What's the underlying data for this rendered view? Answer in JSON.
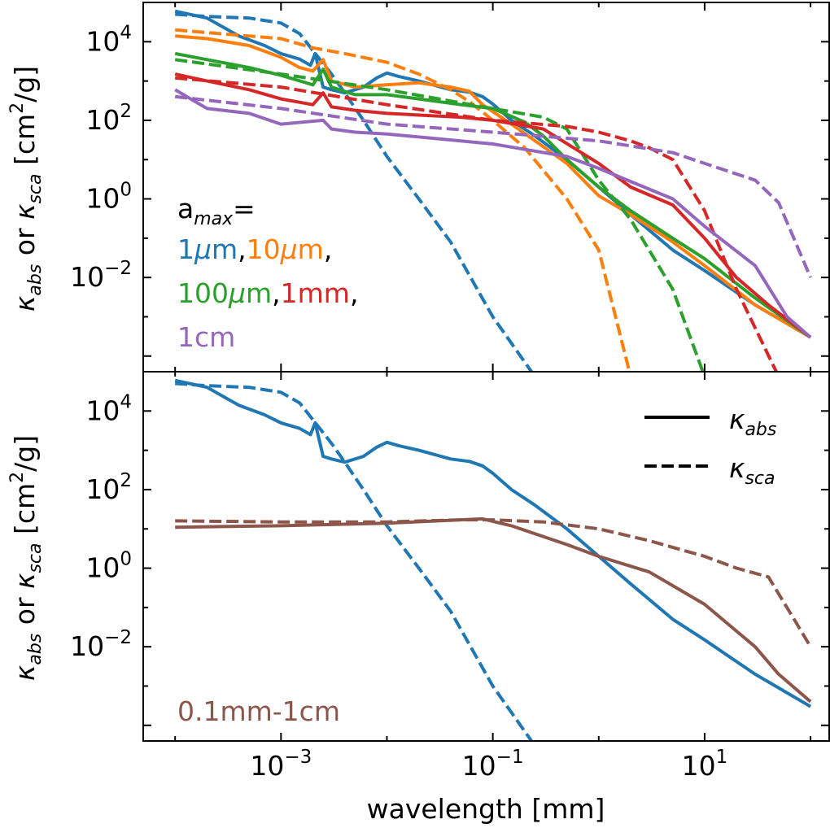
{
  "chart_data": [
    {
      "type": "line",
      "panel": "top",
      "xscale": "log",
      "yscale": "log",
      "xlim": [
        5e-05,
        150
      ],
      "ylim": [
        4e-05,
        100000
      ],
      "xticks": [
        0.001,
        0.1,
        10
      ],
      "xtick_labels": [
        {
          "base": "10",
          "exp": "−3"
        },
        {
          "base": "10",
          "exp": "−1"
        },
        {
          "base": "10",
          "exp": "1"
        }
      ],
      "yticks": [
        0.01,
        1,
        100,
        10000
      ],
      "ytick_labels": [
        {
          "base": "10",
          "exp": "−2"
        },
        {
          "base": "10",
          "exp": "0"
        },
        {
          "base": "10",
          "exp": "2"
        },
        {
          "base": "10",
          "exp": "4"
        }
      ],
      "ylabel": {
        "k1": "κ",
        "s1": "abs",
        "mid": " or ",
        "k2": "κ",
        "s2": "sca",
        "unit1": " [cm",
        "unit_exp": "2",
        "unit2": "/g]"
      },
      "annotation": {
        "title": {
          "base": "a",
          "sub": "max",
          "tail": "="
        },
        "items": [
          {
            "text": "1",
            "mu": "μ",
            "tail": "m",
            "sep": ",",
            "color": "#1f77b4",
            "line": 1
          },
          {
            "text": "10",
            "mu": "μ",
            "tail": "m",
            "sep": ",",
            "color": "#ff7f0e",
            "line": 1
          },
          {
            "text": "100",
            "mu": "μ",
            "tail": "m",
            "sep": ",",
            "color": "#2ca02c",
            "line": 2
          },
          {
            "text": "1mm",
            "mu": "",
            "tail": "",
            "sep": ",",
            "color": "#d62728",
            "line": 2
          },
          {
            "text": "1cm",
            "mu": "",
            "tail": "",
            "sep": "",
            "color": "#9467bd",
            "line": 3
          }
        ]
      },
      "series": [
        {
          "name": "1μm κabs",
          "color": "#1f77b4",
          "dash": false,
          "x": [
            0.0001,
            0.0002,
            0.0004,
            0.0007,
            0.001,
            0.0015,
            0.0019,
            0.0021,
            0.0025,
            0.003,
            0.004,
            0.006,
            0.008,
            0.01,
            0.013,
            0.02,
            0.04,
            0.06,
            0.08,
            0.1,
            0.15,
            0.25,
            0.5,
            1,
            2,
            5,
            10,
            30,
            100
          ],
          "y": [
            60000,
            40000,
            14000,
            8000,
            5000,
            3600,
            2500,
            5000,
            700,
            600,
            500,
            700,
            1200,
            1600,
            1300,
            1000,
            600,
            520,
            400,
            260,
            100,
            40,
            10,
            2,
            0.4,
            0.05,
            0.015,
            0.002,
            0.0003
          ]
        },
        {
          "name": "1μm κsca",
          "color": "#1f77b4",
          "dash": true,
          "x": [
            0.0001,
            0.0002,
            0.0005,
            0.001,
            0.0015,
            0.002,
            0.0025,
            0.003,
            0.004,
            0.006,
            0.01,
            0.02,
            0.04,
            0.1,
            0.25
          ],
          "y": [
            50000,
            44000,
            40000,
            30000,
            16000,
            6000,
            2800,
            1500,
            500,
            100,
            12,
            1,
            0.08,
            0.001,
            3e-05
          ]
        },
        {
          "name": "10μm κabs",
          "color": "#ff7f0e",
          "dash": false,
          "x": [
            0.0001,
            0.0002,
            0.0005,
            0.001,
            0.0015,
            0.002,
            0.0025,
            0.003,
            0.005,
            0.01,
            0.02,
            0.04,
            0.06,
            0.08,
            0.15,
            0.5,
            1,
            2,
            5,
            10,
            30,
            100
          ],
          "y": [
            14000,
            12000,
            8000,
            4000,
            2200,
            1800,
            3500,
            1000,
            700,
            800,
            900,
            700,
            550,
            250,
            80,
            8,
            1.2,
            0.4,
            0.08,
            0.02,
            0.002,
            0.0003
          ]
        },
        {
          "name": "10μm κsca",
          "color": "#ff7f0e",
          "dash": true,
          "x": [
            0.0001,
            0.001,
            0.002,
            0.004,
            0.01,
            0.02,
            0.04,
            0.06,
            0.1,
            0.2,
            0.5,
            1,
            2
          ],
          "y": [
            20000,
            12000,
            7000,
            5000,
            3000,
            1500,
            600,
            300,
            100,
            20,
            1,
            0.05,
            3e-05
          ]
        },
        {
          "name": "100μm κabs",
          "color": "#2ca02c",
          "dash": false,
          "x": [
            0.0001,
            0.0002,
            0.0005,
            0.001,
            0.002,
            0.0025,
            0.003,
            0.005,
            0.01,
            0.02,
            0.05,
            0.1,
            0.2,
            0.3,
            0.5,
            1,
            2,
            5,
            10,
            30,
            100
          ],
          "y": [
            5000,
            3500,
            2200,
            1400,
            800,
            2000,
            700,
            450,
            450,
            350,
            250,
            200,
            90,
            40,
            10,
            2,
            0.5,
            0.1,
            0.03,
            0.003,
            0.0003
          ]
        },
        {
          "name": "100μm κsca",
          "color": "#2ca02c",
          "dash": true,
          "x": [
            0.0001,
            0.001,
            0.01,
            0.1,
            0.3,
            0.5,
            1,
            2,
            5,
            10
          ],
          "y": [
            3500,
            1500,
            600,
            200,
            120,
            60,
            3,
            0.3,
            0.005,
            3e-05
          ]
        },
        {
          "name": "1mm κabs",
          "color": "#d62728",
          "dash": false,
          "x": [
            0.0001,
            0.0002,
            0.0005,
            0.001,
            0.002,
            0.0025,
            0.003,
            0.005,
            0.01,
            0.05,
            0.1,
            0.3,
            1,
            2,
            5,
            10,
            20,
            40,
            100
          ],
          "y": [
            1500,
            1000,
            600,
            350,
            250,
            500,
            220,
            180,
            150,
            120,
            100,
            60,
            8,
            2,
            0.7,
            0.1,
            0.01,
            0.002,
            0.0003
          ]
        },
        {
          "name": "1mm κsca",
          "color": "#d62728",
          "dash": true,
          "x": [
            0.0001,
            0.001,
            0.01,
            0.1,
            0.5,
            1,
            2,
            3,
            5,
            10,
            20,
            50
          ],
          "y": [
            1200,
            700,
            250,
            100,
            70,
            50,
            30,
            20,
            10,
            0.5,
            0.005,
            3e-05
          ]
        },
        {
          "name": "1cm κabs",
          "color": "#9467bd",
          "dash": false,
          "x": [
            0.0001,
            0.0002,
            0.0005,
            0.001,
            0.0025,
            0.003,
            0.005,
            0.01,
            0.1,
            0.5,
            1,
            5,
            10,
            30,
            60,
            100
          ],
          "y": [
            600,
            200,
            150,
            80,
            100,
            60,
            50,
            45,
            25,
            12,
            6,
            1,
            0.2,
            0.02,
            0.001,
            0.0003
          ]
        },
        {
          "name": "1cm κsca",
          "color": "#9467bd",
          "dash": true,
          "x": [
            0.0001,
            0.001,
            0.01,
            0.1,
            1,
            5,
            10,
            30,
            50,
            100
          ],
          "y": [
            400,
            200,
            80,
            50,
            30,
            15,
            8,
            3,
            0.8,
            0.01
          ]
        }
      ]
    },
    {
      "type": "line",
      "panel": "bottom",
      "xscale": "log",
      "yscale": "log",
      "xlim": [
        5e-05,
        150
      ],
      "ylim": [
        4e-05,
        100000
      ],
      "xlabel": "wavelength [mm]",
      "xticks": [
        0.001,
        0.1,
        10
      ],
      "xtick_labels": [
        {
          "base": "10",
          "exp": "−3"
        },
        {
          "base": "10",
          "exp": "−1"
        },
        {
          "base": "10",
          "exp": "1"
        }
      ],
      "yticks": [
        0.01,
        1,
        100,
        10000
      ],
      "ytick_labels": [
        {
          "base": "10",
          "exp": "−2"
        },
        {
          "base": "10",
          "exp": "0"
        },
        {
          "base": "10",
          "exp": "2"
        },
        {
          "base": "10",
          "exp": "4"
        }
      ],
      "ylabel": {
        "k1": "κ",
        "s1": "abs",
        "mid": " or ",
        "k2": "κ",
        "s2": "sca",
        "unit1": " [cm",
        "unit_exp": "2",
        "unit2": "/g]"
      },
      "annotation": {
        "text": "0.1mm-1cm",
        "color": "#8c564b"
      },
      "legend": {
        "position": "top-right",
        "entries": [
          {
            "symbol": "κ",
            "sub": "abs",
            "dash": false
          },
          {
            "symbol": "κ",
            "sub": "sca",
            "dash": true
          }
        ]
      },
      "series": [
        {
          "name": "1μm κabs",
          "color": "#1f77b4",
          "dash": false,
          "x": [
            0.0001,
            0.0002,
            0.0004,
            0.0007,
            0.001,
            0.0015,
            0.0019,
            0.0021,
            0.0025,
            0.003,
            0.004,
            0.006,
            0.008,
            0.01,
            0.013,
            0.02,
            0.04,
            0.06,
            0.08,
            0.1,
            0.15,
            0.25,
            0.5,
            1,
            2,
            5,
            10,
            30,
            100
          ],
          "y": [
            60000,
            40000,
            14000,
            8000,
            5000,
            3600,
            2500,
            5000,
            700,
            600,
            500,
            700,
            1200,
            1600,
            1300,
            1000,
            600,
            520,
            400,
            260,
            100,
            40,
            10,
            2,
            0.4,
            0.05,
            0.015,
            0.002,
            0.0003
          ]
        },
        {
          "name": "1μm κsca",
          "color": "#1f77b4",
          "dash": true,
          "x": [
            0.0001,
            0.0002,
            0.0005,
            0.001,
            0.0015,
            0.002,
            0.0025,
            0.003,
            0.004,
            0.006,
            0.01,
            0.02,
            0.04,
            0.1,
            0.25
          ],
          "y": [
            50000,
            44000,
            40000,
            30000,
            16000,
            6000,
            2800,
            1500,
            500,
            100,
            12,
            1,
            0.08,
            0.001,
            3e-05
          ]
        },
        {
          "name": "0.1mm-1cm κabs",
          "color": "#8c564b",
          "dash": false,
          "x": [
            0.0001,
            0.001,
            0.01,
            0.05,
            0.08,
            0.15,
            0.5,
            1,
            3,
            10,
            30,
            50,
            100
          ],
          "y": [
            11,
            12,
            14,
            17,
            18,
            12,
            4,
            2,
            0.8,
            0.12,
            0.01,
            0.002,
            0.0004
          ]
        },
        {
          "name": "0.1mm-1cm κsca",
          "color": "#8c564b",
          "dash": true,
          "x": [
            0.0001,
            0.001,
            0.01,
            0.05,
            0.1,
            0.3,
            1,
            3,
            10,
            20,
            40,
            70,
            100
          ],
          "y": [
            16,
            15,
            15,
            17,
            17,
            15,
            10,
            5,
            2,
            1,
            0.6,
            0.05,
            0.01
          ]
        }
      ]
    }
  ]
}
